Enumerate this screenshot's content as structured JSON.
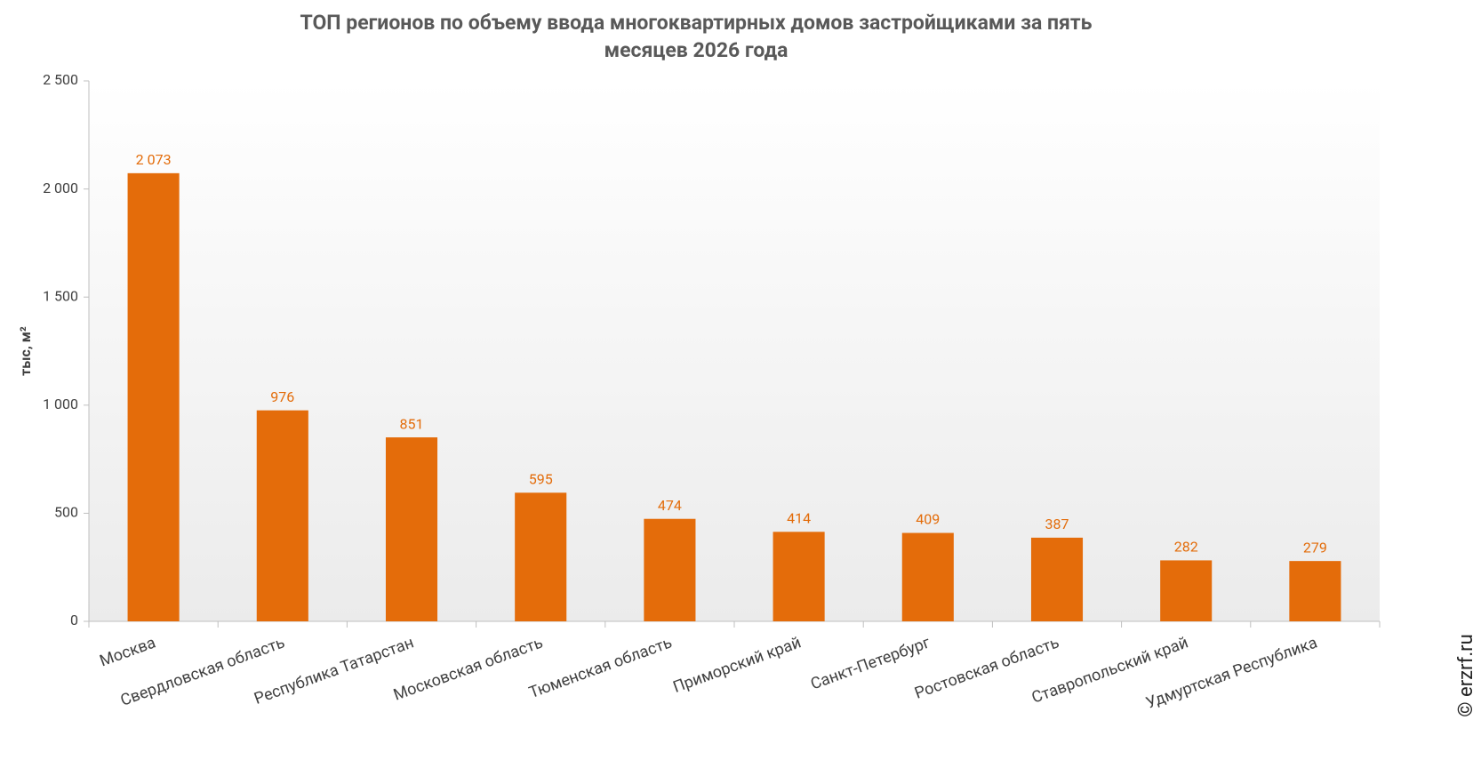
{
  "chart_data": {
    "type": "bar",
    "title_lines": [
      "ТОП регионов по объему ввода многоквартирных домов застройщиками за пять",
      "месяцев 2026 года"
    ],
    "y_label": "тыс, м²",
    "watermark": "© erzrf.ru",
    "categories": [
      "Москва",
      "Свердловская область",
      "Республика Татарстан",
      "Московская область",
      "Тюменская область",
      "Приморский край",
      "Санкт-Петербург",
      "Ростовская область",
      "Ставропольский край",
      "Удмуртская Республика"
    ],
    "values": [
      2073,
      976,
      851,
      595,
      474,
      414,
      409,
      387,
      282,
      279
    ],
    "value_labels": [
      "2 073",
      "976",
      "851",
      "595",
      "474",
      "414",
      "409",
      "387",
      "282",
      "279"
    ],
    "color": "#e46c0a",
    "ylim": [
      0,
      2500
    ],
    "yticks": [
      0,
      500,
      {
        "value": 1000,
        "label": "1 000"
      },
      {
        "value": 1500,
        "label": "1 500"
      },
      {
        "value": 2000,
        "label": "2 000"
      },
      {
        "value": 2500,
        "label": "2 500"
      }
    ],
    "grid": false
  }
}
